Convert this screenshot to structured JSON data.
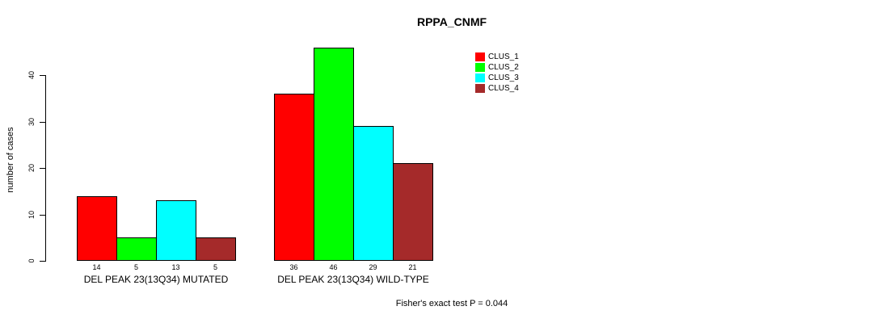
{
  "title": "RPPA_CNMF",
  "ylabel": "number of cases",
  "footer": "Fisher's exact test P = 0.044",
  "chart_data": {
    "type": "bar",
    "title": "RPPA_CNMF",
    "xlabel": "",
    "ylabel": "number of cases",
    "ylim": [
      0,
      46
    ],
    "yticks": [
      0,
      10,
      20,
      30,
      40
    ],
    "grid": false,
    "legend_position": "top-right",
    "categories": [
      "DEL PEAK 23(13Q34) MUTATED",
      "DEL PEAK 23(13Q34) WILD-TYPE"
    ],
    "series": [
      {
        "name": "CLUS_1",
        "color": "#FF0000",
        "values": [
          14,
          36
        ]
      },
      {
        "name": "CLUS_2",
        "color": "#00FF00",
        "values": [
          5,
          46
        ]
      },
      {
        "name": "CLUS_3",
        "color": "#00FFFF",
        "values": [
          13,
          29
        ]
      },
      {
        "name": "CLUS_4",
        "color": "#A52A2A",
        "values": [
          5,
          21
        ]
      }
    ],
    "bar_value_labels": [
      [
        14,
        5,
        13,
        5
      ],
      [
        36,
        46,
        29,
        21
      ]
    ],
    "annotation": "Fisher's exact test P = 0.044"
  }
}
